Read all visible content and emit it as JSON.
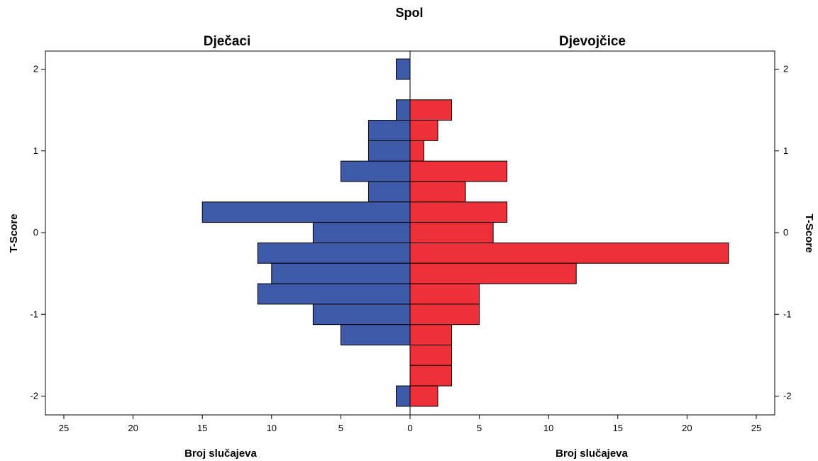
{
  "chart_data": {
    "type": "bar",
    "subtype": "population-pyramid",
    "title": "Spol",
    "panels": [
      {
        "name": "Dječaci",
        "color": "#3f5aa9",
        "xlabel": "Broj slučajeva",
        "bins": [
          2.0,
          1.5,
          1.25,
          1.0,
          0.75,
          0.5,
          0.25,
          0.0,
          -0.25,
          -0.5,
          -0.75,
          -1.0,
          -1.25,
          -1.5,
          -1.75,
          -2.0
        ],
        "values": [
          1,
          1,
          3,
          3,
          5,
          3,
          15,
          7,
          11,
          10,
          11,
          7,
          5,
          0,
          0,
          1
        ]
      },
      {
        "name": "Djevojčice",
        "color": "#ee3138",
        "xlabel": "Broj slučajeva",
        "bins": [
          2.0,
          1.5,
          1.25,
          1.0,
          0.75,
          0.5,
          0.25,
          0.0,
          -0.25,
          -0.5,
          -0.75,
          -1.0,
          -1.25,
          -1.5,
          -1.75,
          -2.0
        ],
        "values": [
          0,
          3,
          2,
          1,
          7,
          4,
          7,
          6,
          23,
          12,
          5,
          5,
          3,
          3,
          3,
          2
        ]
      }
    ],
    "ylabel": "T-Score",
    "ylim": [
      -2.25,
      2.25
    ],
    "yticks": [
      "2",
      "1",
      "0",
      "-1",
      "-2"
    ],
    "ytick_values": [
      2,
      1,
      0,
      -1,
      -2
    ],
    "xlim": [
      0,
      25
    ],
    "xticks": [
      "25",
      "20",
      "15",
      "10",
      "5",
      "0",
      "5",
      "10",
      "15",
      "20",
      "25"
    ],
    "grid": false
  }
}
